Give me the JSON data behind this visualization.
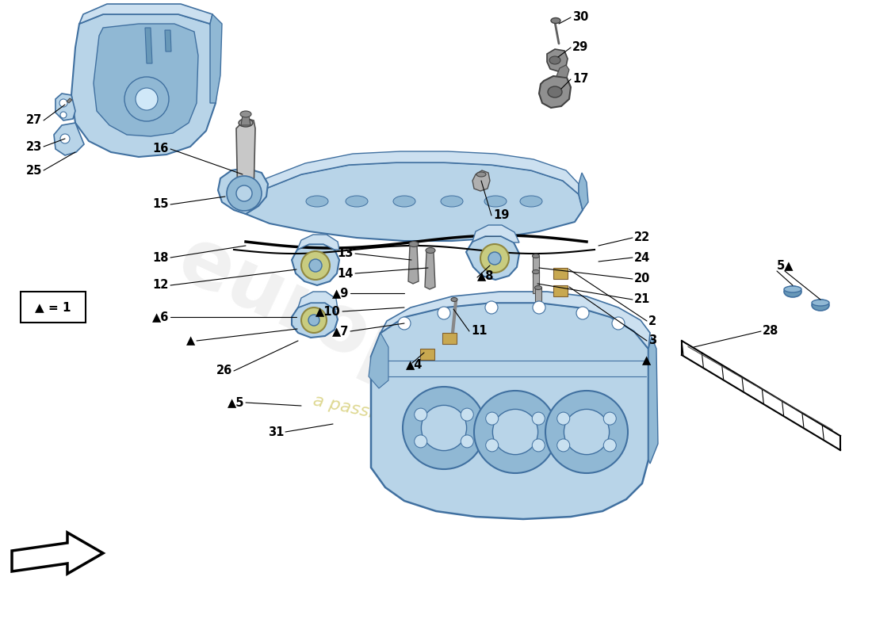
{
  "background_color": "#ffffff",
  "part_color_main": "#b8d4e8",
  "part_color_mid": "#90b8d4",
  "part_color_dark": "#6898b8",
  "part_color_outline": "#4070a0",
  "label_fontsize": 10.5,
  "label_fontweight": "bold",
  "legend_text": "▲ = 1",
  "watermark_color": "#d0d0d0",
  "watermark2_color": "#d4cc70"
}
